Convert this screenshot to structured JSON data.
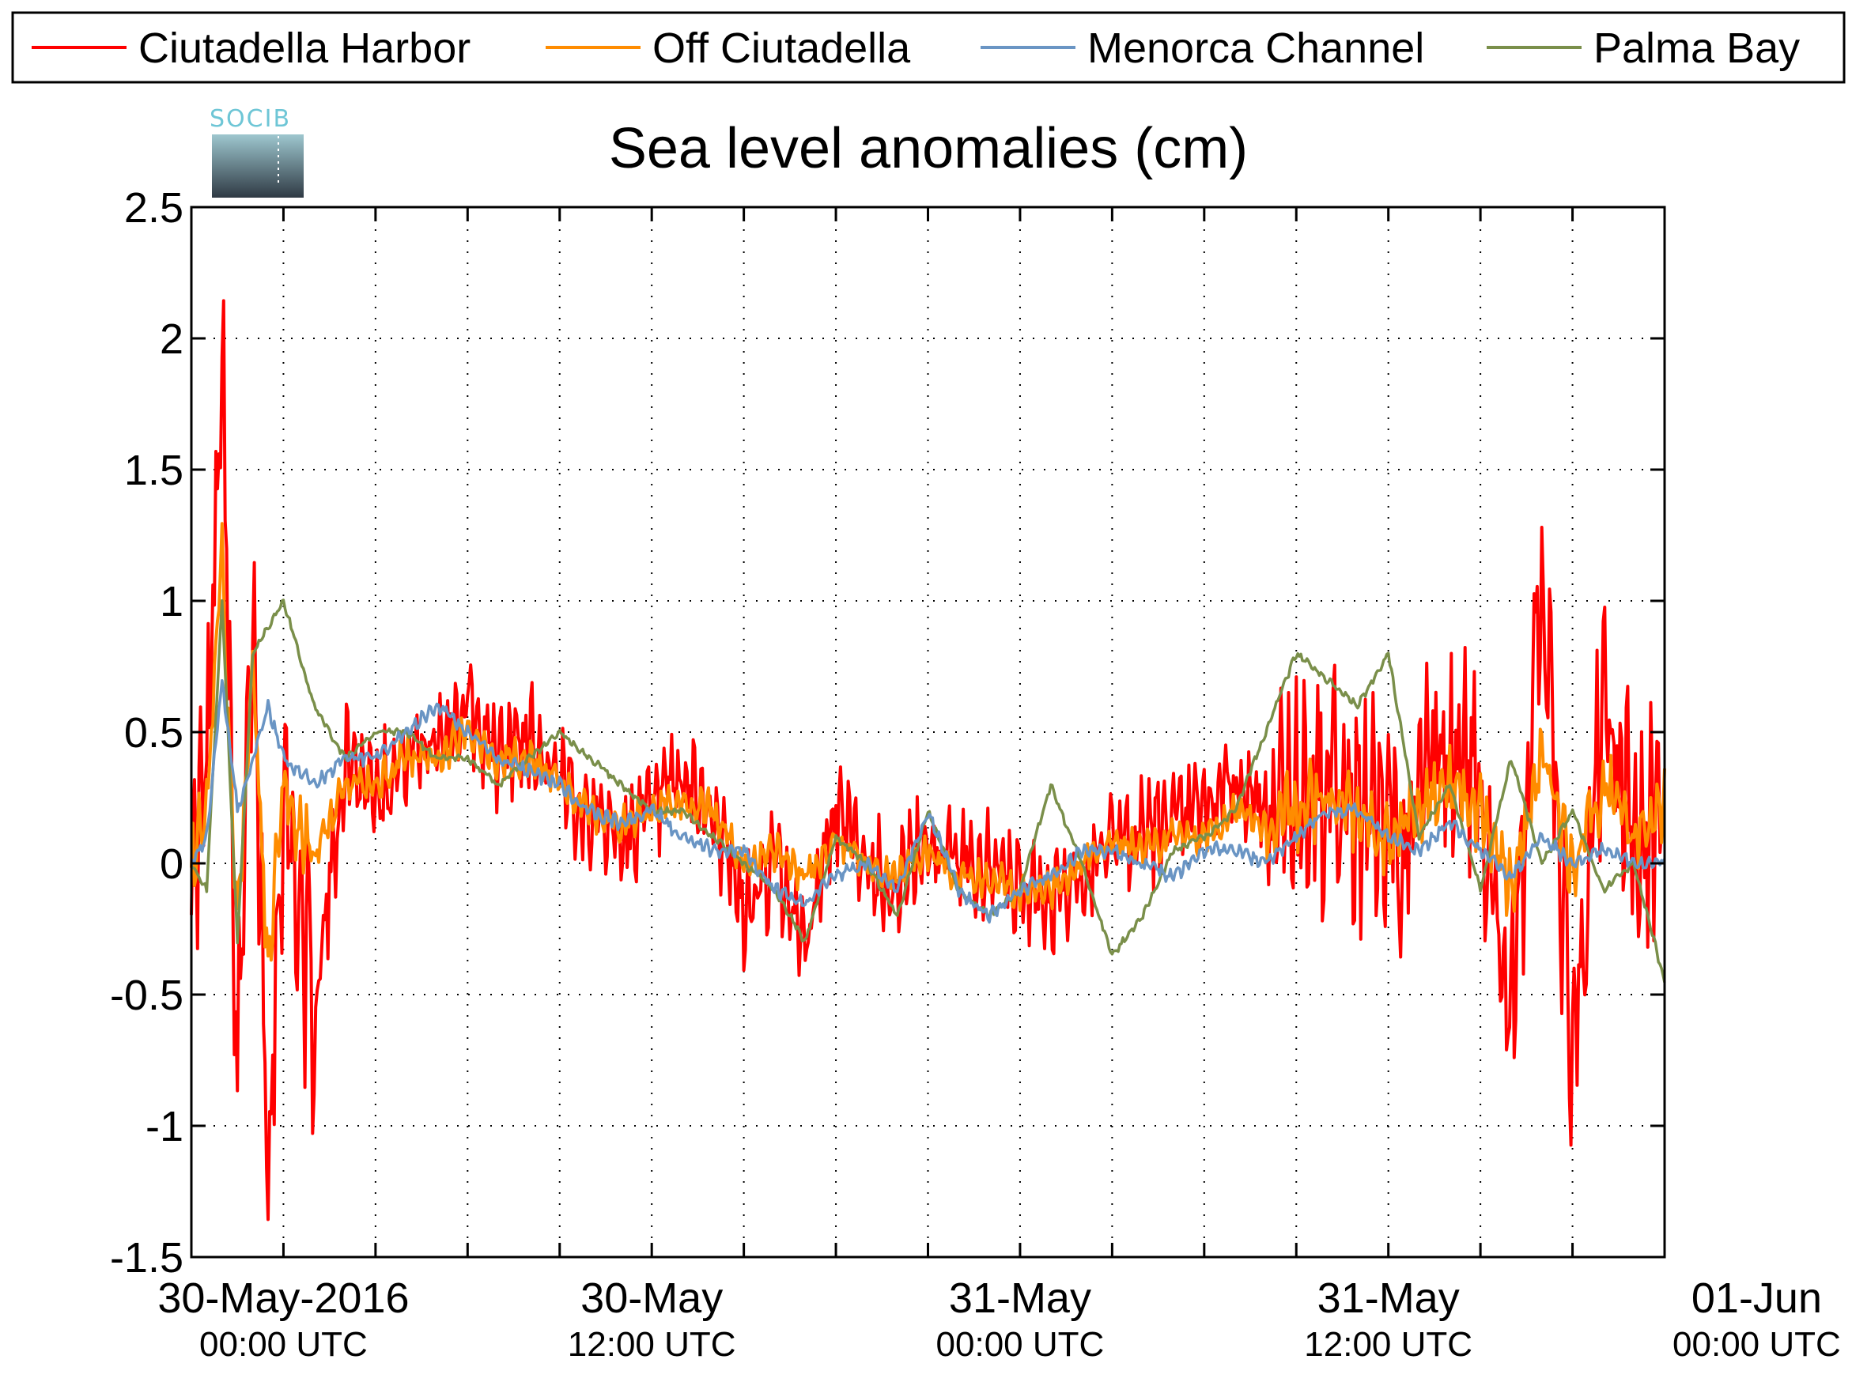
{
  "chart_data": {
    "type": "line",
    "title": "Sea level anomalies (cm)",
    "logo_text": "SOCIB",
    "xlabel": "",
    "ylabel": "",
    "ylim": [
      -1.5,
      2.5
    ],
    "y_ticks": [
      "2.5",
      "2",
      "1.5",
      "1",
      "0.5",
      "0",
      "-0.5",
      "-1",
      "-1.5"
    ],
    "x_range_hours": [
      -3,
      45
    ],
    "x_ticks": [
      {
        "date": "30-May-2016",
        "time": "00:00 UTC"
      },
      {
        "date": "30-May",
        "time": "12:00 UTC"
      },
      {
        "date": "31-May",
        "time": "00:00 UTC"
      },
      {
        "date": "31-May",
        "time": "12:00 UTC"
      },
      {
        "date": "01-Jun",
        "time": "00:00 UTC"
      }
    ],
    "grid": true,
    "legend_position": "top",
    "series": [
      {
        "name": "Ciutadella Harbor",
        "color": "#ff0000",
        "x": [
          -3,
          -2.5,
          -2,
          -1.5,
          -1,
          -0.5,
          0,
          1,
          2,
          3,
          4,
          5,
          6,
          7,
          8,
          9,
          10,
          11,
          12,
          13,
          14,
          15,
          16,
          17,
          18,
          19,
          20,
          21,
          22,
          23,
          24,
          25,
          26,
          27,
          28,
          29,
          30,
          31,
          32,
          33,
          34,
          35,
          36,
          37,
          38,
          39,
          40,
          41,
          42,
          43,
          44,
          45
        ],
        "y": [
          0.0,
          0.3,
          2.1,
          -0.9,
          1.0,
          -1.1,
          0.3,
          -0.6,
          0.4,
          0.3,
          0.4,
          0.5,
          0.6,
          0.4,
          0.5,
          0.3,
          0.2,
          0.1,
          0.2,
          0.3,
          0.2,
          -0.2,
          0.0,
          -0.3,
          0.2,
          0.0,
          -0.1,
          0.1,
          0.0,
          0.0,
          -0.1,
          -0.15,
          -0.05,
          0.1,
          0.1,
          0.15,
          0.2,
          0.3,
          0.2,
          0.25,
          0.3,
          0.2,
          0.1,
          0.2,
          0.4,
          0.3,
          -0.6,
          1.1,
          -0.8,
          0.6,
          0.1,
          0.2
        ]
      },
      {
        "name": "Off Ciutadella",
        "color": "#ff8c00",
        "x": [
          -3,
          -2.5,
          -2,
          -1.5,
          -1,
          -0.5,
          0,
          1,
          2,
          3,
          4,
          5,
          6,
          7,
          8,
          9,
          10,
          11,
          12,
          13,
          14,
          15,
          16,
          17,
          18,
          19,
          20,
          21,
          22,
          23,
          24,
          25,
          26,
          27,
          28,
          29,
          30,
          31,
          32,
          33,
          34,
          35,
          36,
          37,
          38,
          39,
          40,
          41,
          42,
          43,
          44,
          45
        ],
        "y": [
          0.0,
          0.2,
          1.2,
          -0.3,
          0.8,
          -0.4,
          0.3,
          0.0,
          0.3,
          0.3,
          0.4,
          0.4,
          0.5,
          0.4,
          0.4,
          0.3,
          0.2,
          0.15,
          0.2,
          0.25,
          0.2,
          0.0,
          0.05,
          -0.05,
          0.1,
          0.0,
          -0.05,
          0.05,
          -0.05,
          -0.05,
          -0.1,
          -0.1,
          0.0,
          0.1,
          0.05,
          0.1,
          0.1,
          0.2,
          0.15,
          0.2,
          0.25,
          0.2,
          0.1,
          0.2,
          0.3,
          0.2,
          -0.1,
          0.4,
          0.0,
          0.3,
          0.1,
          0.2
        ]
      },
      {
        "name": "Menorca Channel",
        "color": "#6a95c4",
        "x": [
          -3,
          -2.5,
          -2,
          -1.5,
          -1,
          -0.5,
          0,
          1,
          2,
          3,
          4,
          5,
          6,
          7,
          8,
          9,
          10,
          11,
          12,
          13,
          14,
          15,
          16,
          17,
          18,
          19,
          20,
          21,
          22,
          23,
          24,
          25,
          26,
          27,
          28,
          29,
          30,
          31,
          32,
          33,
          34,
          35,
          36,
          37,
          38,
          39,
          40,
          41,
          42,
          43,
          44,
          45
        ],
        "y": [
          0.0,
          0.1,
          0.7,
          0.2,
          0.4,
          0.6,
          0.4,
          0.3,
          0.4,
          0.4,
          0.5,
          0.6,
          0.5,
          0.4,
          0.35,
          0.3,
          0.2,
          0.15,
          0.2,
          0.1,
          0.05,
          0.05,
          -0.1,
          -0.15,
          -0.05,
          0.0,
          -0.1,
          0.2,
          -0.1,
          -0.2,
          -0.1,
          -0.05,
          0.05,
          0.05,
          0.0,
          -0.05,
          0.05,
          0.05,
          0.0,
          0.1,
          0.2,
          0.2,
          0.1,
          0.05,
          0.15,
          0.05,
          -0.05,
          0.1,
          0.0,
          0.05,
          0.0,
          0.0
        ]
      },
      {
        "name": "Palma Bay",
        "color": "#7a8f4a",
        "x": [
          -3,
          -2.5,
          -2,
          -1.5,
          -1,
          -0.5,
          0,
          1,
          2,
          3,
          4,
          5,
          6,
          7,
          8,
          9,
          10,
          11,
          12,
          13,
          14,
          15,
          16,
          17,
          18,
          19,
          20,
          21,
          22,
          23,
          24,
          25,
          26,
          27,
          28,
          29,
          30,
          31,
          32,
          33,
          34,
          35,
          36,
          37,
          38,
          39,
          40,
          41,
          42,
          43,
          44,
          45
        ],
        "y": [
          0.0,
          -0.1,
          1.0,
          -0.3,
          0.8,
          0.9,
          1.0,
          0.6,
          0.4,
          0.5,
          0.5,
          0.4,
          0.4,
          0.3,
          0.4,
          0.5,
          0.4,
          0.3,
          0.2,
          0.2,
          0.1,
          0.0,
          -0.1,
          -0.3,
          0.1,
          0.0,
          -0.2,
          0.2,
          -0.1,
          -0.2,
          -0.1,
          0.3,
          0.0,
          -0.35,
          -0.2,
          0.05,
          0.1,
          0.2,
          0.5,
          0.8,
          0.7,
          0.6,
          0.8,
          0.1,
          0.3,
          -0.1,
          0.4,
          0.0,
          0.2,
          -0.1,
          0.0,
          -0.45
        ]
      }
    ]
  }
}
